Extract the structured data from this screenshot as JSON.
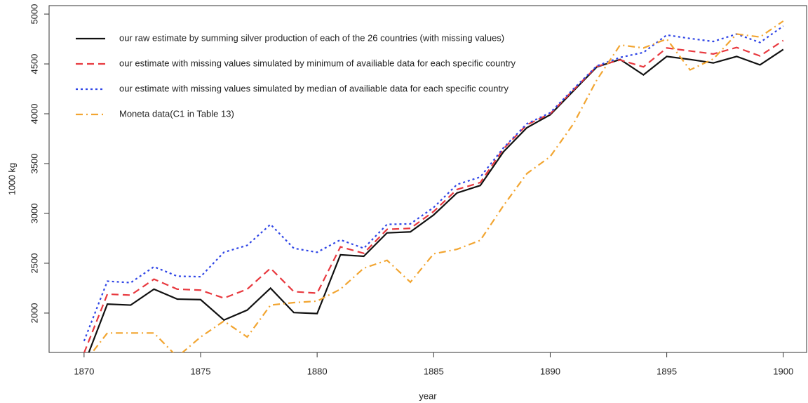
{
  "chart_data": {
    "type": "line",
    "x_label": "year",
    "y_label": "1000 kg",
    "x": [
      1870,
      1871,
      1872,
      1873,
      1874,
      1875,
      1876,
      1877,
      1878,
      1879,
      1880,
      1881,
      1882,
      1883,
      1884,
      1885,
      1886,
      1887,
      1888,
      1889,
      1890,
      1891,
      1892,
      1893,
      1894,
      1895,
      1896,
      1897,
      1898,
      1899,
      1900
    ],
    "series": [
      {
        "name": "our raw estimate by summing silver production of each of the 26 countries (with missing values)",
        "color": "#111111",
        "line_style": "solid",
        "values": [
          1480,
          2090,
          2080,
          2240,
          2140,
          2135,
          1930,
          2030,
          2250,
          2005,
          1995,
          2585,
          2570,
          2805,
          2815,
          2985,
          3205,
          3280,
          3620,
          3860,
          3990,
          4230,
          4470,
          4545,
          4390,
          4575,
          4545,
          4510,
          4575,
          4490,
          4645
        ]
      },
      {
        "name": "our estimate with missing values simulated by minimum of availiable data for each specific country",
        "color": "#e8393f",
        "line_style": "dashed",
        "values": [
          1600,
          2190,
          2180,
          2340,
          2240,
          2230,
          2150,
          2240,
          2450,
          2215,
          2200,
          2665,
          2600,
          2840,
          2850,
          3020,
          3240,
          3310,
          3650,
          3890,
          4000,
          4240,
          4475,
          4540,
          4470,
          4660,
          4630,
          4600,
          4665,
          4580,
          4735
        ]
      },
      {
        "name": "our estimate with missing values simulated by median of availiable data for each specific country",
        "color": "#2f45e6",
        "line_style": "dotted",
        "values": [
          1720,
          2320,
          2305,
          2465,
          2370,
          2365,
          2610,
          2680,
          2890,
          2650,
          2610,
          2735,
          2650,
          2890,
          2895,
          3060,
          3290,
          3365,
          3660,
          3900,
          4010,
          4250,
          4480,
          4565,
          4615,
          4790,
          4755,
          4725,
          4800,
          4715,
          4880
        ]
      },
      {
        "name": "Moneta data(C1 in Table 13)",
        "color": "#f2a531",
        "line_style": "dashdot",
        "values": [
          1500,
          1800,
          1800,
          1800,
          1560,
          1760,
          1920,
          1760,
          2080,
          2105,
          2120,
          2240,
          2450,
          2530,
          2310,
          2595,
          2640,
          2730,
          3080,
          3400,
          3570,
          3900,
          4340,
          4690,
          4660,
          4750,
          4440,
          4550,
          4800,
          4770,
          4930
        ]
      }
    ],
    "xlim": [
      1868.5,
      1901
    ],
    "xticks": [
      1870,
      1875,
      1880,
      1885,
      1890,
      1895,
      1900
    ],
    "ylim": [
      1605,
      5085
    ],
    "yticks": [
      2000,
      2500,
      3000,
      3500,
      4000,
      4500,
      5000
    ],
    "legend": "top-left",
    "grid": false
  }
}
